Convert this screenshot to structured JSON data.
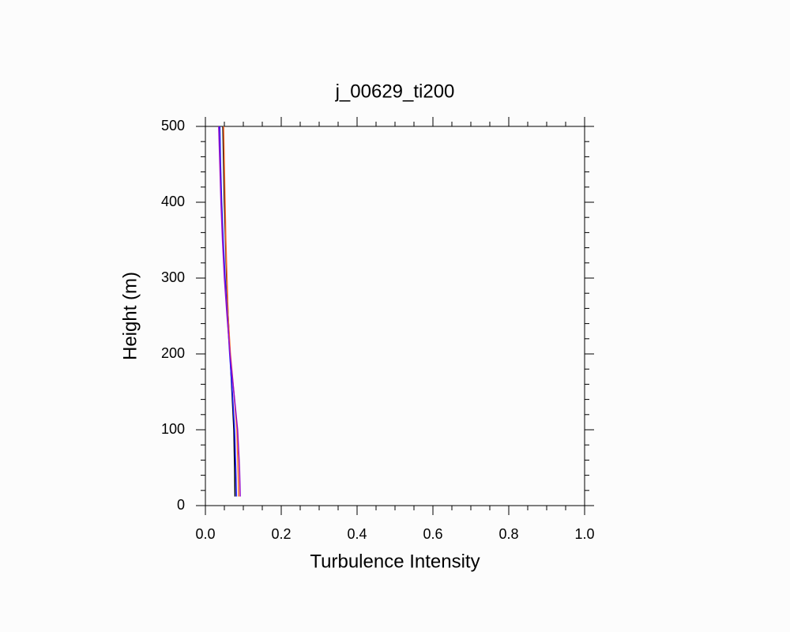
{
  "chart_data": {
    "type": "line",
    "title": "j_00629_ti200",
    "x_label": "Turbulence Intensity",
    "y_label": "Height (m)",
    "xlim": [
      0,
      1
    ],
    "ylim": [
      0,
      500
    ],
    "xticks": [
      {
        "value": 0,
        "label": "0.0"
      },
      0.2,
      0.4,
      0.6,
      0.8,
      {
        "value": 1,
        "label": "1.0"
      }
    ],
    "yticks": [
      0,
      100,
      200,
      300,
      400,
      500
    ],
    "xminorticks": [
      0.05,
      0.1,
      0.15,
      0.25,
      0.3,
      0.35,
      0.45,
      0.5,
      0.55,
      0.65,
      0.7,
      0.75,
      0.85,
      0.9,
      0.95
    ],
    "yminorticks": [
      20,
      40,
      60,
      80,
      120,
      140,
      160,
      180,
      220,
      240,
      260,
      280,
      320,
      340,
      360,
      380,
      420,
      440,
      460,
      480
    ],
    "y": [
      12,
      50,
      100,
      150,
      200,
      250,
      300,
      350,
      400,
      450,
      500
    ],
    "series": [
      {
        "color": "#000000",
        "values": [
          0.078,
          0.077,
          0.075,
          0.07,
          0.065,
          0.06,
          0.056,
          0.053,
          0.05,
          0.048,
          0.046
        ]
      },
      {
        "color": "#ff6a2a",
        "values": [
          0.088,
          0.086,
          0.083,
          0.075,
          0.066,
          0.06,
          0.057,
          0.054,
          0.052,
          0.05,
          0.048
        ]
      },
      {
        "color": "#1a1aff",
        "values": [
          0.082,
          0.08,
          0.077,
          0.071,
          0.064,
          0.058,
          0.052,
          0.047,
          0.043,
          0.04,
          0.038
        ]
      },
      {
        "color": "#9a10c8",
        "values": [
          0.092,
          0.09,
          0.085,
          0.075,
          0.065,
          0.057,
          0.05,
          0.045,
          0.041,
          0.038,
          0.035
        ]
      }
    ]
  }
}
